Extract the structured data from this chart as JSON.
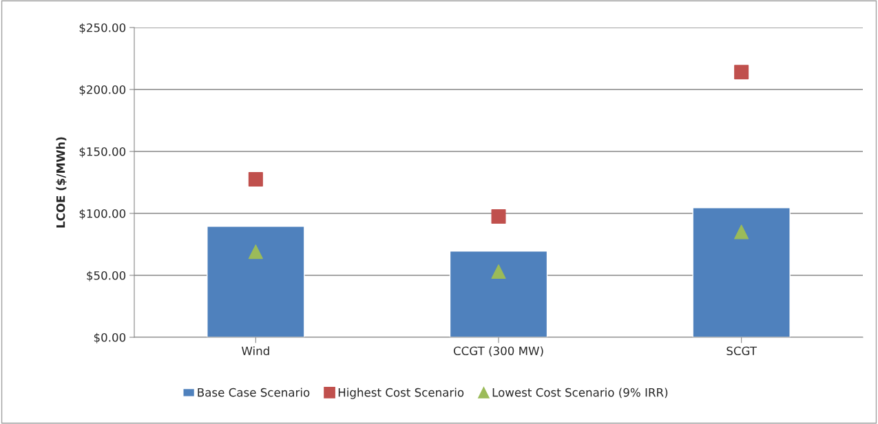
{
  "chart_data": {
    "type": "bar",
    "ylabel": "LCOE ($/MWh)",
    "categories": [
      "Wind",
      "CCGT (300 MW)",
      "SCGT"
    ],
    "series": [
      {
        "name": "Base Case Scenario",
        "color": "#4f81bd",
        "values": [
          89.5,
          69.5,
          104.5
        ]
      },
      {
        "name": "Highest Cost Scenario",
        "type": "scatter",
        "marker": "square",
        "color": "#c0504d",
        "x": [
          "Wind",
          "CCGT (300 MW)",
          "SCGT"
        ],
        "values": [
          127.5,
          97.5,
          214
        ]
      },
      {
        "name": "Lowest Cost Scenario (9% IRR)",
        "type": "scatter",
        "marker": "triangle",
        "color": "#9bbb59",
        "x": [
          "Wind",
          "CCGT (300 MW)",
          "SCGT"
        ],
        "values": [
          69,
          53,
          85
        ]
      }
    ],
    "ylim": [
      0,
      250
    ],
    "yticks": [
      {
        "value": 0,
        "label": "$0.00"
      },
      {
        "value": 50,
        "label": "$50.00"
      },
      {
        "value": 100,
        "label": "$100.00"
      },
      {
        "value": 150,
        "label": "$150.00"
      },
      {
        "value": 200,
        "label": "$200.00"
      },
      {
        "value": 250,
        "label": "$250.00"
      }
    ],
    "grid": "y",
    "legend": "bottom"
  }
}
